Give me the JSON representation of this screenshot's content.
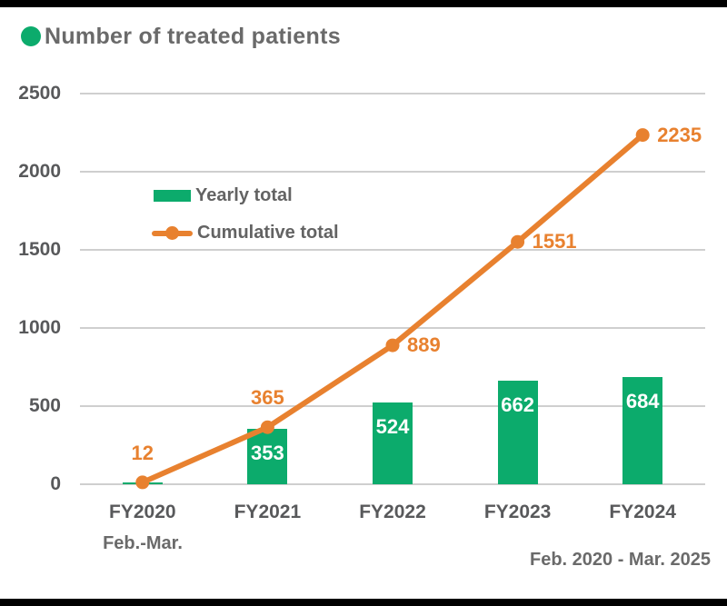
{
  "title": "Number of treated patients",
  "legend": {
    "yearly_label": "Yearly total",
    "cumulative_label": "Cumulative total"
  },
  "notes": {
    "fy2020_period": "Feb.-Mar.",
    "overall_period": "Feb. 2020 - Mar. 2025"
  },
  "colors": {
    "green": "#0CAB6C",
    "orange": "#E8812F",
    "grid": "#CFCFCF",
    "axis_text": "#58595B",
    "ui_text": "#6A6A6A",
    "bar_value_text": "#FFFFFF",
    "frame": "#000000",
    "background": "#FFFFFF"
  },
  "chart_data": {
    "type": "bar",
    "subtype": "bar+line combo",
    "title": "Number of treated patients",
    "xlabel": "",
    "ylabel": "",
    "categories": [
      "FY2020",
      "FY2021",
      "FY2022",
      "FY2023",
      "FY2024"
    ],
    "series": [
      {
        "name": "Yearly total",
        "type": "bar",
        "color": "#0CAB6C",
        "values": [
          12,
          353,
          524,
          662,
          684
        ],
        "value_labels": [
          "",
          "353",
          "524",
          "662",
          "684"
        ]
      },
      {
        "name": "Cumulative total",
        "type": "line",
        "color": "#E8812F",
        "values": [
          12,
          365,
          889,
          1551,
          2235
        ],
        "value_labels": [
          "12",
          "365",
          "889",
          "1551",
          "2235"
        ]
      }
    ],
    "ylim": [
      0,
      2500
    ],
    "yticks": [
      0,
      500,
      1000,
      1500,
      2000,
      2500
    ],
    "grid": true,
    "legend_position": "inside-upper-left",
    "category_note": "FY2020 covers Feb.-Mar. only",
    "period_note": "Feb. 2020 - Mar. 2025"
  }
}
